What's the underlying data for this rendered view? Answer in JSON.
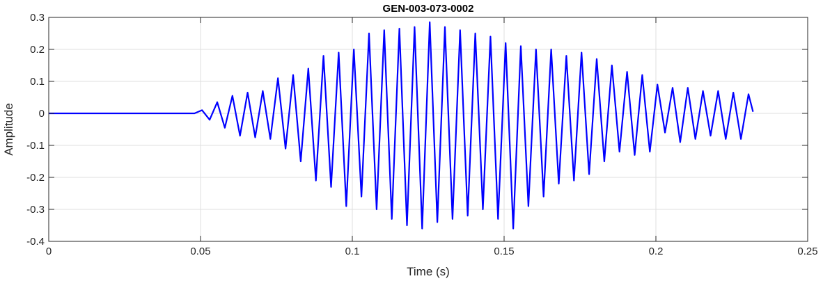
{
  "chart_data": {
    "type": "line",
    "title": "GEN-003-073-0002",
    "xlabel": "Time (s)",
    "ylabel": "Amplitude",
    "xlim": [
      0,
      0.25
    ],
    "ylim": [
      -0.4,
      0.3
    ],
    "xticks": [
      0,
      0.05,
      0.1,
      0.15,
      0.2,
      0.25
    ],
    "xtick_labels": [
      "0",
      "0.05",
      "0.1",
      "0.15",
      "0.2",
      "0.25"
    ],
    "yticks": [
      -0.4,
      -0.3,
      -0.2,
      -0.1,
      0,
      0.1,
      0.2,
      0.3
    ],
    "ytick_labels": [
      "-0.4",
      "-0.3",
      "-0.2",
      "-0.1",
      "0",
      "0.1",
      "0.2",
      "0.3"
    ],
    "grid": true,
    "line_color": "#0000ff",
    "series": [
      {
        "x": [
          0,
          0.01,
          0.02,
          0.03,
          0.04,
          0.048,
          0.0505,
          0.053,
          0.0555,
          0.058,
          0.0605,
          0.063,
          0.0655,
          0.068,
          0.0705,
          0.073,
          0.0755,
          0.078,
          0.0805,
          0.083,
          0.0855,
          0.088,
          0.0905,
          0.093,
          0.0955,
          0.098,
          0.1005,
          0.103,
          0.1055,
          0.108,
          0.1105,
          0.113,
          0.1155,
          0.118,
          0.1205,
          0.123,
          0.1255,
          0.128,
          0.1305,
          0.133,
          0.1355,
          0.138,
          0.1405,
          0.143,
          0.1455,
          0.148,
          0.1505,
          0.153,
          0.1555,
          0.158,
          0.1605,
          0.163,
          0.1655,
          0.168,
          0.1705,
          0.173,
          0.1755,
          0.178,
          0.1805,
          0.183,
          0.1855,
          0.188,
          0.1905,
          0.193,
          0.1955,
          0.198,
          0.2005,
          0.203,
          0.2055,
          0.208,
          0.2105,
          0.213,
          0.2155,
          0.218,
          0.2205,
          0.223,
          0.2255,
          0.228,
          0.2305,
          0.232
        ],
        "y": [
          0,
          0,
          0,
          0,
          0,
          0,
          0.01,
          -0.02,
          0.035,
          -0.045,
          0.055,
          -0.07,
          0.065,
          -0.075,
          0.07,
          -0.08,
          0.11,
          -0.11,
          0.12,
          -0.15,
          0.14,
          -0.21,
          0.18,
          -0.23,
          0.19,
          -0.29,
          0.2,
          -0.26,
          0.25,
          -0.3,
          0.26,
          -0.33,
          0.265,
          -0.35,
          0.27,
          -0.36,
          0.285,
          -0.34,
          0.27,
          -0.33,
          0.26,
          -0.32,
          0.25,
          -0.3,
          0.24,
          -0.33,
          0.22,
          -0.36,
          0.21,
          -0.29,
          0.2,
          -0.26,
          0.2,
          -0.22,
          0.18,
          -0.21,
          0.19,
          -0.19,
          0.17,
          -0.15,
          0.15,
          -0.12,
          0.13,
          -0.13,
          0.12,
          -0.12,
          0.09,
          -0.06,
          0.08,
          -0.09,
          0.08,
          -0.08,
          0.07,
          -0.07,
          0.07,
          -0.08,
          0.065,
          -0.08,
          0.06,
          0.005
        ]
      }
    ]
  }
}
